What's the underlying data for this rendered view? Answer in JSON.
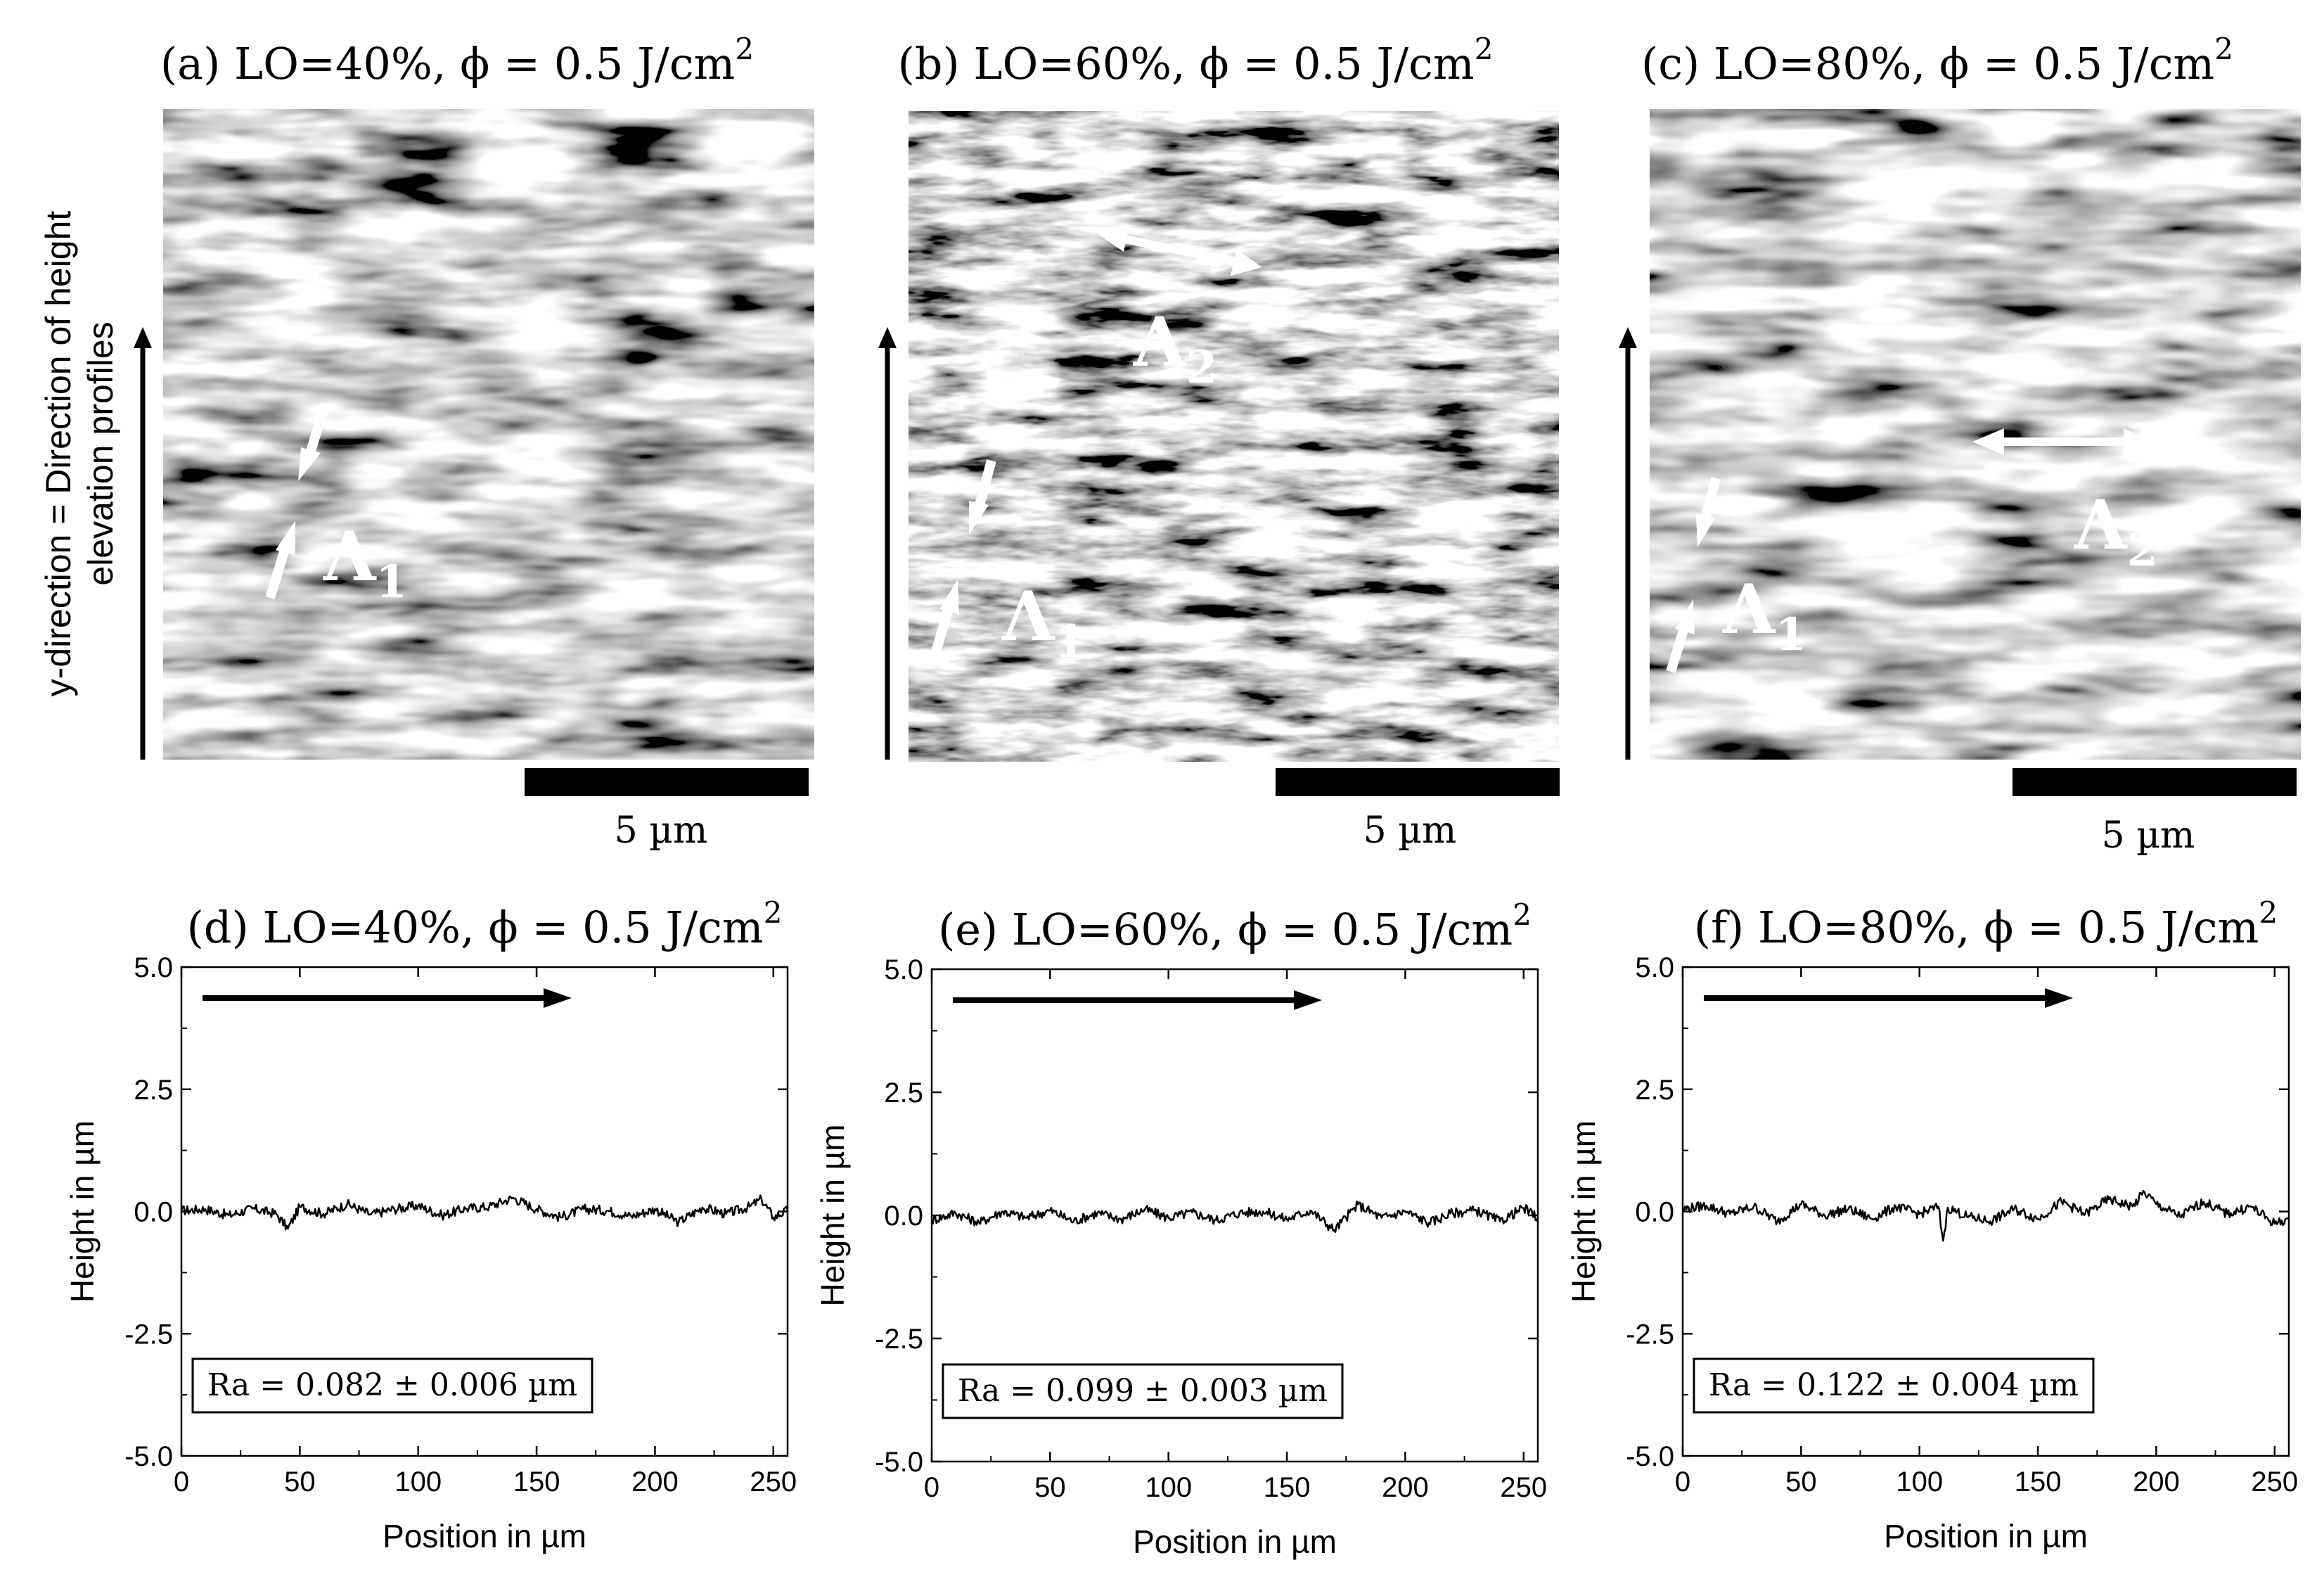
{
  "figure": {
    "side_axis": {
      "line1": "y-direction = Direction of height",
      "line2": "elevation profiles"
    },
    "sem_panels": [
      {
        "tag": "(a) LO=40%, ϕ = 0.5 J/cm",
        "sup": "2",
        "scale_label": "5 µm",
        "labels": [
          {
            "text": "Λ",
            "sub": "1"
          }
        ],
        "texture": "fine"
      },
      {
        "tag": "(b) LO=60%, ϕ = 0.5 J/cm",
        "sup": "2",
        "scale_label": "5 µm",
        "labels": [
          {
            "text": "Λ",
            "sub": "2"
          },
          {
            "text": "Λ",
            "sub": "1"
          }
        ],
        "texture": "sharp"
      },
      {
        "tag": "(c) LO=80%, ϕ = 0.5 J/cm",
        "sup": "2",
        "scale_label": "5 µm",
        "labels": [
          {
            "text": "Λ",
            "sub": "2"
          },
          {
            "text": "Λ",
            "sub": "1"
          }
        ],
        "texture": "coarse"
      }
    ]
  },
  "chart_data": [
    {
      "type": "line",
      "title": "(d) LO=40%, ϕ = 0.5 J/cm",
      "title_sup": "2",
      "xlabel": "Position in µm",
      "ylabel": "Height in µm",
      "xlim": [
        0,
        256
      ],
      "ylim": [
        -5.0,
        5.0
      ],
      "xticks": [
        "0",
        "50",
        "100",
        "150",
        "200",
        "250"
      ],
      "yticks": [
        "5.0",
        "2.5",
        "0.0",
        "-2.5",
        "-5.0"
      ],
      "annotation": "Ra = 0.082  ± 0.006 µm",
      "series": [
        {
          "x": [
            0,
            10,
            20,
            30,
            40,
            45,
            50,
            60,
            70,
            80,
            90,
            100,
            110,
            120,
            130,
            140,
            150,
            160,
            170,
            180,
            190,
            200,
            210,
            220,
            230,
            240,
            245,
            250,
            256
          ],
          "y": [
            0.02,
            0.05,
            -0.08,
            0.06,
            -0.05,
            -0.35,
            0.1,
            -0.05,
            0.15,
            -0.06,
            0.05,
            0.12,
            -0.08,
            0.06,
            0.1,
            0.28,
            0.05,
            -0.12,
            0.05,
            0.02,
            -0.1,
            0.05,
            -0.22,
            0.08,
            -0.05,
            0.1,
            0.25,
            -0.12,
            0.02
          ]
        }
      ]
    },
    {
      "type": "line",
      "title": "(e) LO=60%, ϕ = 0.5 J/cm",
      "title_sup": "2",
      "xlabel": "Position in µm",
      "ylabel": "Height in µm",
      "xlim": [
        0,
        256
      ],
      "ylim": [
        -5.0,
        5.0
      ],
      "xticks": [
        "0",
        "50",
        "100",
        "150",
        "200",
        "250"
      ],
      "yticks": [
        "5.0",
        "2.5",
        "0.0",
        "-2.5",
        "-5.0"
      ],
      "annotation": "Ra = 0.099  ± 0.003 µm",
      "series": [
        {
          "x": [
            0,
            10,
            20,
            30,
            40,
            50,
            60,
            70,
            80,
            90,
            100,
            110,
            120,
            130,
            140,
            150,
            160,
            170,
            180,
            190,
            200,
            210,
            220,
            230,
            240,
            250,
            256
          ],
          "y": [
            -0.1,
            0.05,
            -0.15,
            0.08,
            -0.05,
            0.1,
            -0.12,
            0.05,
            -0.08,
            0.12,
            -0.05,
            0.06,
            -0.1,
            0.05,
            0.08,
            -0.08,
            0.1,
            -0.3,
            0.22,
            -0.05,
            0.08,
            -0.15,
            0.05,
            0.1,
            -0.12,
            0.15,
            -0.05
          ]
        }
      ]
    },
    {
      "type": "line",
      "title": "(f) LO=80%, ϕ = 0.5 J/cm",
      "title_sup": "2",
      "xlabel": "Position in µm",
      "ylabel": "Height in µm",
      "xlim": [
        0,
        256
      ],
      "ylim": [
        -5.0,
        5.0
      ],
      "xticks": [
        "0",
        "50",
        "100",
        "150",
        "200",
        "250"
      ],
      "yticks": [
        "5.0",
        "2.5",
        "0.0",
        "-2.5",
        "-5.0"
      ],
      "annotation": "Ra = 0.122  ± 0.004 µm",
      "series": [
        {
          "x": [
            0,
            10,
            20,
            30,
            40,
            50,
            60,
            70,
            80,
            90,
            100,
            108,
            110,
            112,
            120,
            130,
            140,
            150,
            160,
            170,
            180,
            190,
            195,
            200,
            210,
            220,
            230,
            240,
            250,
            256
          ],
          "y": [
            0.05,
            0.12,
            -0.05,
            0.1,
            -0.2,
            0.15,
            -0.08,
            0.05,
            -0.15,
            0.1,
            -0.05,
            0.1,
            -0.6,
            0.08,
            -0.1,
            -0.2,
            0.05,
            -0.15,
            0.2,
            -0.05,
            0.25,
            0.1,
            0.4,
            0.15,
            -0.1,
            0.2,
            -0.05,
            0.1,
            -0.25,
            -0.15
          ]
        }
      ]
    }
  ]
}
